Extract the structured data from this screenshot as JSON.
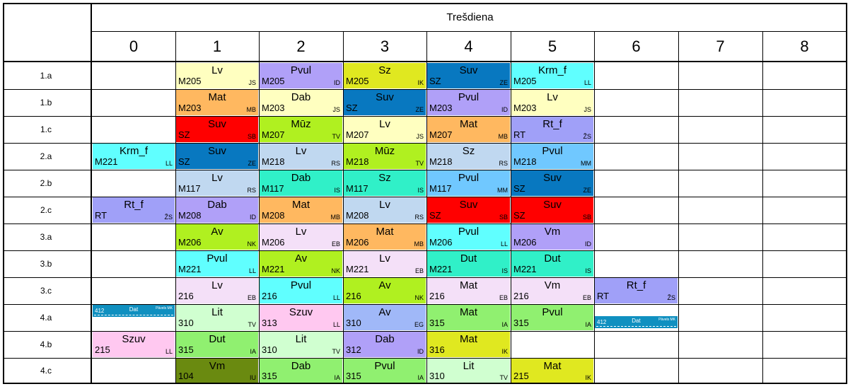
{
  "day": "Trešdiena",
  "periods": [
    "0",
    "1",
    "2",
    "3",
    "4",
    "5",
    "6",
    "7",
    "8"
  ],
  "classes": [
    "1.a",
    "1.b",
    "1.c",
    "2.a",
    "2.b",
    "2.c",
    "3.a",
    "3.b",
    "3.c",
    "4.a",
    "4.b",
    "4.c"
  ],
  "lessons": [
    {
      "row": 0,
      "col": 1,
      "subject": "Lv",
      "room": "M205",
      "teacher": "JS",
      "color": "#ffffc0"
    },
    {
      "row": 0,
      "col": 2,
      "subject": "Pvul",
      "room": "M205",
      "teacher": "ID",
      "color": "#b0a0f8"
    },
    {
      "row": 0,
      "col": 3,
      "subject": "Sz",
      "room": "M205",
      "teacher": "IK",
      "color": "#e0e820"
    },
    {
      "row": 0,
      "col": 4,
      "subject": "Suv",
      "room": "SZ",
      "teacher": "ZE",
      "color": "#0878c0"
    },
    {
      "row": 0,
      "col": 5,
      "subject": "Krm_f",
      "room": "M205",
      "teacher": "LL",
      "color": "#60ffff"
    },
    {
      "row": 1,
      "col": 1,
      "subject": "Mat",
      "room": "M203",
      "teacher": "MB",
      "color": "#ffb860"
    },
    {
      "row": 1,
      "col": 2,
      "subject": "Dab",
      "room": "M203",
      "teacher": "JS",
      "color": "#ffffc0"
    },
    {
      "row": 1,
      "col": 3,
      "subject": "Suv",
      "room": "SZ",
      "teacher": "ZE",
      "color": "#0878c0"
    },
    {
      "row": 1,
      "col": 4,
      "subject": "Pvul",
      "room": "M203",
      "teacher": "ID",
      "color": "#b0a0f8"
    },
    {
      "row": 1,
      "col": 5,
      "subject": "Lv",
      "room": "M203",
      "teacher": "JS",
      "color": "#ffffc0"
    },
    {
      "row": 2,
      "col": 1,
      "subject": "Suv",
      "room": "SZ",
      "teacher": "SB",
      "color": "#ff0000"
    },
    {
      "row": 2,
      "col": 2,
      "subject": "Mūz",
      "room": "M207",
      "teacher": "TV",
      "color": "#b0f020"
    },
    {
      "row": 2,
      "col": 3,
      "subject": "Lv",
      "room": "M207",
      "teacher": "JS",
      "color": "#ffffc0"
    },
    {
      "row": 2,
      "col": 4,
      "subject": "Mat",
      "room": "M207",
      "teacher": "MB",
      "color": "#ffb860"
    },
    {
      "row": 2,
      "col": 5,
      "subject": "Rt_f",
      "room": "RT",
      "teacher": "ŽS",
      "color": "#a0a0f8"
    },
    {
      "row": 3,
      "col": 0,
      "subject": "Krm_f",
      "room": "M221",
      "teacher": "LL",
      "color": "#60ffff"
    },
    {
      "row": 3,
      "col": 1,
      "subject": "Suv",
      "room": "SZ",
      "teacher": "ZE",
      "color": "#0878c0"
    },
    {
      "row": 3,
      "col": 2,
      "subject": "Lv",
      "room": "M218",
      "teacher": "RS",
      "color": "#c0d8f0"
    },
    {
      "row": 3,
      "col": 3,
      "subject": "Mūz",
      "room": "M218",
      "teacher": "TV",
      "color": "#b0f020"
    },
    {
      "row": 3,
      "col": 4,
      "subject": "Sz",
      "room": "M218",
      "teacher": "RS",
      "color": "#c0d8f0"
    },
    {
      "row": 3,
      "col": 5,
      "subject": "Pvul",
      "room": "M218",
      "teacher": "MM",
      "color": "#70c8ff"
    },
    {
      "row": 4,
      "col": 1,
      "subject": "Lv",
      "room": "M117",
      "teacher": "RS",
      "color": "#c0d8f0"
    },
    {
      "row": 4,
      "col": 2,
      "subject": "Dab",
      "room": "M117",
      "teacher": "IS",
      "color": "#30f0c8"
    },
    {
      "row": 4,
      "col": 3,
      "subject": "Sz",
      "room": "M117",
      "teacher": "IS",
      "color": "#30f0c8"
    },
    {
      "row": 4,
      "col": 4,
      "subject": "Pvul",
      "room": "M117",
      "teacher": "MM",
      "color": "#70c8ff"
    },
    {
      "row": 4,
      "col": 5,
      "subject": "Suv",
      "room": "SZ",
      "teacher": "ZE",
      "color": "#0878c0"
    },
    {
      "row": 5,
      "col": 0,
      "subject": "Rt_f",
      "room": "RT",
      "teacher": "ŽS",
      "color": "#a0a0f8"
    },
    {
      "row": 5,
      "col": 1,
      "subject": "Dab",
      "room": "M208",
      "teacher": "ID",
      "color": "#b0a0f8"
    },
    {
      "row": 5,
      "col": 2,
      "subject": "Mat",
      "room": "M208",
      "teacher": "MB",
      "color": "#ffb860"
    },
    {
      "row": 5,
      "col": 3,
      "subject": "Lv",
      "room": "M208",
      "teacher": "RS",
      "color": "#c0d8f0"
    },
    {
      "row": 5,
      "col": 4,
      "subject": "Suv",
      "room": "SZ",
      "teacher": "SB",
      "color": "#ff0000"
    },
    {
      "row": 5,
      "col": 5,
      "subject": "Suv",
      "room": "SZ",
      "teacher": "SB",
      "color": "#ff0000"
    },
    {
      "row": 6,
      "col": 1,
      "subject": "Av",
      "room": "M206",
      "teacher": "NK",
      "color": "#b0f020"
    },
    {
      "row": 6,
      "col": 2,
      "subject": "Lv",
      "room": "M206",
      "teacher": "EB",
      "color": "#f4e0f8"
    },
    {
      "row": 6,
      "col": 3,
      "subject": "Mat",
      "room": "M206",
      "teacher": "MB",
      "color": "#ffb860"
    },
    {
      "row": 6,
      "col": 4,
      "subject": "Pvul",
      "room": "M206",
      "teacher": "LL",
      "color": "#60ffff"
    },
    {
      "row": 6,
      "col": 5,
      "subject": "Vm",
      "room": "M206",
      "teacher": "ID",
      "color": "#b0a0f8"
    },
    {
      "row": 7,
      "col": 1,
      "subject": "Pvul",
      "room": "M221",
      "teacher": "LL",
      "color": "#60ffff"
    },
    {
      "row": 7,
      "col": 2,
      "subject": "Av",
      "room": "M221",
      "teacher": "NK",
      "color": "#b0f020"
    },
    {
      "row": 7,
      "col": 3,
      "subject": "Lv",
      "room": "M221",
      "teacher": "EB",
      "color": "#f4e0f8"
    },
    {
      "row": 7,
      "col": 4,
      "subject": "Dut",
      "room": "M221",
      "teacher": "IS",
      "color": "#30f0c8"
    },
    {
      "row": 7,
      "col": 5,
      "subject": "Dut",
      "room": "M221",
      "teacher": "IS",
      "color": "#30f0c8"
    },
    {
      "row": 8,
      "col": 1,
      "subject": "Lv",
      "room": "216",
      "teacher": "EB",
      "color": "#f4e0f8"
    },
    {
      "row": 8,
      "col": 2,
      "subject": "Pvul",
      "room": "216",
      "teacher": "LL",
      "color": "#60ffff"
    },
    {
      "row": 8,
      "col": 3,
      "subject": "Av",
      "room": "216",
      "teacher": "NK",
      "color": "#b0f020"
    },
    {
      "row": 8,
      "col": 4,
      "subject": "Mat",
      "room": "216",
      "teacher": "EB",
      "color": "#f4e0f8"
    },
    {
      "row": 8,
      "col": 5,
      "subject": "Vm",
      "room": "216",
      "teacher": "EB",
      "color": "#f4e0f8"
    },
    {
      "row": 8,
      "col": 6,
      "subject": "Rt_f",
      "room": "RT",
      "teacher": "ŽS",
      "color": "#a0a0f8"
    },
    {
      "row": 9,
      "col": 0,
      "subject": "Dat",
      "room": "412",
      "teacher": "Pāvels MK",
      "color": "#1090c0",
      "small": "top"
    },
    {
      "row": 9,
      "col": 1,
      "subject": "Lit",
      "room": "310",
      "teacher": "TV",
      "color": "#d0ffd0"
    },
    {
      "row": 9,
      "col": 2,
      "subject": "Szuv",
      "room": "313",
      "teacher": "LL",
      "color": "#ffc8f0"
    },
    {
      "row": 9,
      "col": 3,
      "subject": "Av",
      "room": "310",
      "teacher": "EG",
      "color": "#a0b8f8"
    },
    {
      "row": 9,
      "col": 4,
      "subject": "Mat",
      "room": "315",
      "teacher": "IA",
      "color": "#90f070"
    },
    {
      "row": 9,
      "col": 5,
      "subject": "Pvul",
      "room": "315",
      "teacher": "IA",
      "color": "#90f070"
    },
    {
      "row": 9,
      "col": 6,
      "subject": "Dat",
      "room": "412",
      "teacher": "Pāvels MK",
      "color": "#1090c0",
      "small": "bottom"
    },
    {
      "row": 10,
      "col": 0,
      "subject": "Szuv",
      "room": "215",
      "teacher": "LL",
      "color": "#ffc8f0"
    },
    {
      "row": 10,
      "col": 1,
      "subject": "Dut",
      "room": "315",
      "teacher": "IA",
      "color": "#90f070"
    },
    {
      "row": 10,
      "col": 2,
      "subject": "Lit",
      "room": "310",
      "teacher": "TV",
      "color": "#d0ffd0"
    },
    {
      "row": 10,
      "col": 3,
      "subject": "Dab",
      "room": "312",
      "teacher": "ID",
      "color": "#b0a0f8"
    },
    {
      "row": 10,
      "col": 4,
      "subject": "Mat",
      "room": "316",
      "teacher": "IK",
      "color": "#e0e820"
    },
    {
      "row": 11,
      "col": 1,
      "subject": "Vm",
      "room": "104",
      "teacher": "IU",
      "color": "#6a8a10"
    },
    {
      "row": 11,
      "col": 2,
      "subject": "Dab",
      "room": "315",
      "teacher": "IA",
      "color": "#90f070"
    },
    {
      "row": 11,
      "col": 3,
      "subject": "Pvul",
      "room": "315",
      "teacher": "IA",
      "color": "#90f070"
    },
    {
      "row": 11,
      "col": 4,
      "subject": "Lit",
      "room": "310",
      "teacher": "TV",
      "color": "#d0ffd0"
    },
    {
      "row": 11,
      "col": 5,
      "subject": "Mat",
      "room": "215",
      "teacher": "IK",
      "color": "#e0e820"
    }
  ]
}
